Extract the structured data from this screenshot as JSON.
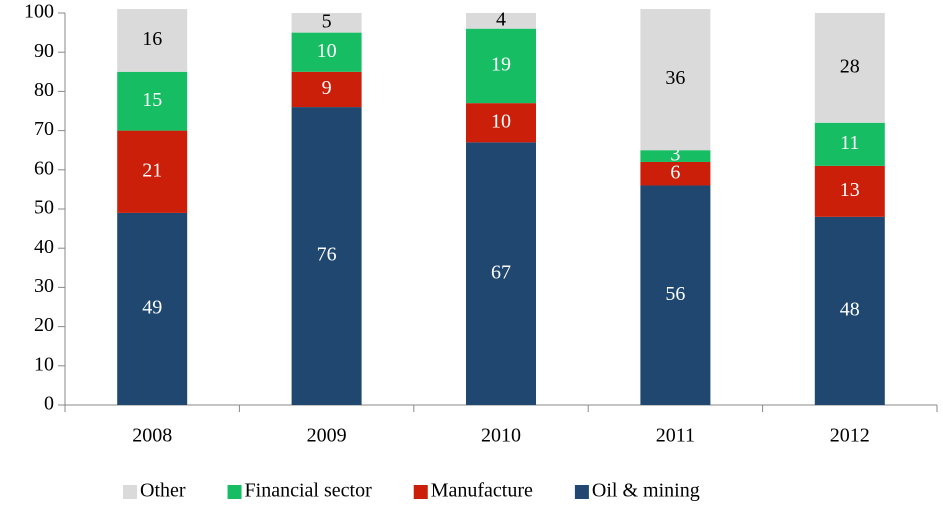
{
  "chart_data": {
    "type": "stacked_bar",
    "categories": [
      "2008",
      "2009",
      "2010",
      "2011",
      "2012"
    ],
    "series": [
      {
        "name": "Oil & mining",
        "color": "#1f4770",
        "label_color": "#ffffff",
        "values": [
          49,
          76,
          67,
          56,
          48
        ]
      },
      {
        "name": "Manufacture",
        "color": "#cc1f0a",
        "label_color": "#ffffff",
        "values": [
          21,
          9,
          10,
          6,
          13
        ]
      },
      {
        "name": "Financial sector",
        "color": "#16bd62",
        "label_color": "#ffffff",
        "values": [
          15,
          10,
          19,
          3,
          11
        ]
      },
      {
        "name": "Other",
        "color": "#dadada",
        "label_color": "#000000",
        "values": [
          16,
          5,
          4,
          36,
          28
        ]
      }
    ],
    "ylim": [
      0,
      100
    ],
    "yticks": [
      0,
      10,
      20,
      30,
      40,
      50,
      60,
      70,
      80,
      90,
      100
    ],
    "legend": "bottom",
    "grid": false
  }
}
